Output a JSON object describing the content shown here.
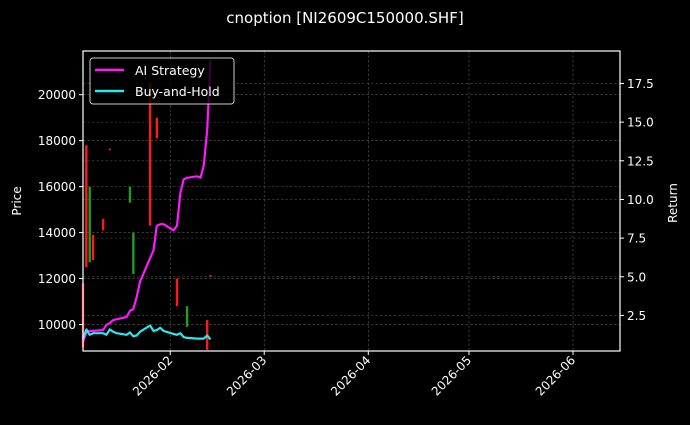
{
  "chart_data": {
    "type": "line",
    "title": "cnoption [NI2609C150000.SHF]",
    "xlabel": "",
    "ylabel": "Price",
    "ylabel_right": "Return",
    "background": "#000000",
    "grid": true,
    "legend_position": "upper left",
    "xlim": [
      "2026-01-06",
      "2026-06-15"
    ],
    "ylim_left": [
      8850,
      21900
    ],
    "ylim_right": [
      0.2,
      19.6
    ],
    "x_ticks": [
      "2026-02",
      "2026-03",
      "2026-04",
      "2026-05",
      "2026-06"
    ],
    "y_ticks_left": [
      10000,
      12000,
      14000,
      16000,
      18000,
      20000
    ],
    "y_ticks_right": [
      2.5,
      5.0,
      7.5,
      10.0,
      12.5,
      15.0,
      17.5
    ],
    "legend": [
      {
        "name": "AI Strategy",
        "color": "#ff19ff"
      },
      {
        "name": "Buy-and-Hold",
        "color": "#2ee6ee"
      }
    ],
    "series": [
      {
        "name": "AI Strategy",
        "axis": "right",
        "color": "#ff19ff",
        "x": [
          "2026-01-06",
          "2026-01-07",
          "2026-01-08",
          "2026-01-09",
          "2026-01-12",
          "2026-01-13",
          "2026-01-14",
          "2026-01-15",
          "2026-01-16",
          "2026-01-19",
          "2026-01-20",
          "2026-01-21",
          "2026-01-22",
          "2026-01-23",
          "2026-01-26",
          "2026-01-27",
          "2026-01-28",
          "2026-01-29",
          "2026-01-30",
          "2026-02-02",
          "2026-02-03",
          "2026-02-04",
          "2026-02-05",
          "2026-02-06",
          "2026-02-09",
          "2026-02-10",
          "2026-02-11",
          "2026-02-12",
          "2026-02-13"
        ],
        "values": [
          0.8,
          1.4,
          1.5,
          1.5,
          1.55,
          1.9,
          2.0,
          2.2,
          2.25,
          2.4,
          2.8,
          2.9,
          3.7,
          4.7,
          6.2,
          6.7,
          8.3,
          8.4,
          8.4,
          8.0,
          8.3,
          10.4,
          11.3,
          11.4,
          11.5,
          11.4,
          12.2,
          14.5,
          19.0
        ]
      },
      {
        "name": "Buy-and-Hold",
        "axis": "right",
        "color": "#2ee6ee",
        "x": [
          "2026-01-06",
          "2026-01-07",
          "2026-01-08",
          "2026-01-09",
          "2026-01-12",
          "2026-01-13",
          "2026-01-14",
          "2026-01-15",
          "2026-01-16",
          "2026-01-19",
          "2026-01-20",
          "2026-01-21",
          "2026-01-22",
          "2026-01-23",
          "2026-01-26",
          "2026-01-27",
          "2026-01-28",
          "2026-01-29",
          "2026-01-30",
          "2026-02-02",
          "2026-02-03",
          "2026-02-04",
          "2026-02-05",
          "2026-02-06",
          "2026-02-09",
          "2026-02-10",
          "2026-02-11",
          "2026-02-12",
          "2026-02-13"
        ],
        "values": [
          1.0,
          1.6,
          1.25,
          1.35,
          1.35,
          1.25,
          1.6,
          1.45,
          1.35,
          1.25,
          1.4,
          1.15,
          1.2,
          1.45,
          1.85,
          1.5,
          1.55,
          1.7,
          1.5,
          1.3,
          1.25,
          1.35,
          1.1,
          1.05,
          1.0,
          1.0,
          1.0,
          1.2,
          0.95
        ]
      }
    ],
    "candles": {
      "axis": "left",
      "up_color": "#1f9e1f",
      "down_color": "#ff1a1a",
      "items": [
        {
          "x": "2026-01-06",
          "open": 11800,
          "close": 9000,
          "dir": "down"
        },
        {
          "x": "2026-01-07",
          "open": 17800,
          "close": 12500,
          "dir": "down"
        },
        {
          "x": "2026-01-08",
          "open": 12700,
          "close": 16000,
          "dir": "up"
        },
        {
          "x": "2026-01-09",
          "open": 13900,
          "close": 12800,
          "dir": "down"
        },
        {
          "x": "2026-01-12",
          "open": 14600,
          "close": 14100,
          "dir": "down"
        },
        {
          "x": "2026-01-14",
          "open": 17650,
          "close": 17600,
          "dir": "down"
        },
        {
          "x": "2026-01-20",
          "open": 15300,
          "close": 16000,
          "dir": "up"
        },
        {
          "x": "2026-01-21",
          "open": 12200,
          "close": 14000,
          "dir": "up"
        },
        {
          "x": "2026-01-26",
          "open": 20500,
          "close": 14300,
          "dir": "down"
        },
        {
          "x": "2026-01-28",
          "open": 19000,
          "close": 18100,
          "dir": "down"
        },
        {
          "x": "2026-02-03",
          "open": 12000,
          "close": 10800,
          "dir": "down"
        },
        {
          "x": "2026-02-06",
          "open": 9900,
          "close": 10800,
          "dir": "up"
        },
        {
          "x": "2026-02-12",
          "open": 10200,
          "close": 8900,
          "dir": "down"
        },
        {
          "x": "2026-02-13",
          "open": 12150,
          "close": 12100,
          "dir": "down"
        }
      ]
    }
  }
}
